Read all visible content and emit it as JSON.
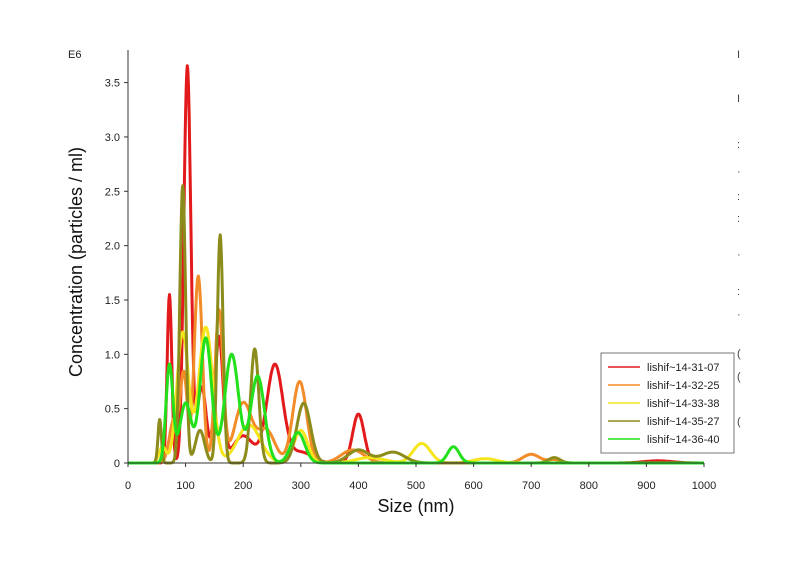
{
  "chart_data": {
    "type": "line",
    "title": "",
    "xlabel": "Size (nm)",
    "ylabel": "Concentration (particles / ml)",
    "y_exponent_label": "E6",
    "xlim": [
      0,
      1000
    ],
    "ylim": [
      0,
      3.8
    ],
    "x_ticks": [
      0,
      100,
      200,
      300,
      400,
      500,
      600,
      700,
      800,
      900,
      1000
    ],
    "x_tick_labels": [
      "0",
      "100",
      "200",
      "300",
      "400",
      "500",
      "600",
      "700",
      "800",
      "900",
      "1000"
    ],
    "y_ticks": [
      0,
      0.5,
      1.0,
      1.5,
      2.0,
      2.5,
      3.0,
      3.5
    ],
    "y_tick_labels": [
      "0",
      "0.5",
      "1.0",
      "1.5",
      "2.0",
      "2.5",
      "3.0",
      "3.5"
    ],
    "legend_position": "right",
    "series": [
      {
        "name": "lishif~14-31-07",
        "color": "#e31a1c",
        "peaks": [
          [
            72,
            1.55,
            4
          ],
          [
            103,
            3.65,
            6
          ],
          [
            128,
            0.7,
            8
          ],
          [
            158,
            1.15,
            7
          ],
          [
            200,
            0.25,
            18
          ],
          [
            255,
            0.9,
            14
          ],
          [
            300,
            0.1,
            20
          ],
          [
            400,
            0.45,
            10
          ],
          [
            920,
            0.02,
            25
          ]
        ]
      },
      {
        "name": "lishif~14-32-25",
        "color": "#f28c28",
        "peaks": [
          [
            80,
            0.4,
            8
          ],
          [
            97,
            0.8,
            6
          ],
          [
            122,
            1.72,
            7
          ],
          [
            158,
            1.4,
            7
          ],
          [
            200,
            0.55,
            15
          ],
          [
            240,
            0.3,
            15
          ],
          [
            298,
            0.75,
            12
          ],
          [
            390,
            0.12,
            20
          ],
          [
            700,
            0.08,
            15
          ],
          [
            740,
            0.03,
            10
          ]
        ]
      },
      {
        "name": "lishif~14-33-38",
        "color": "#f5e51b",
        "peaks": [
          [
            60,
            0.15,
            6
          ],
          [
            95,
            1.2,
            10
          ],
          [
            135,
            1.25,
            12
          ],
          [
            210,
            0.35,
            20
          ],
          [
            300,
            0.3,
            12
          ],
          [
            420,
            0.05,
            25
          ],
          [
            510,
            0.18,
            15
          ],
          [
            620,
            0.04,
            20
          ]
        ]
      },
      {
        "name": "lishif~14-35-27",
        "color": "#8c8c1c",
        "peaks": [
          [
            55,
            0.4,
            3
          ],
          [
            95,
            2.55,
            5
          ],
          [
            125,
            0.3,
            8
          ],
          [
            160,
            2.1,
            5
          ],
          [
            220,
            1.05,
            7
          ],
          [
            305,
            0.55,
            12
          ],
          [
            400,
            0.12,
            18
          ],
          [
            460,
            0.1,
            20
          ],
          [
            740,
            0.05,
            10
          ]
        ]
      },
      {
        "name": "lishif~14-36-40",
        "color": "#22e01b",
        "peaks": [
          [
            72,
            0.9,
            6
          ],
          [
            100,
            0.55,
            10
          ],
          [
            135,
            1.15,
            10
          ],
          [
            180,
            1.0,
            12
          ],
          [
            225,
            0.8,
            12
          ],
          [
            295,
            0.28,
            12
          ],
          [
            565,
            0.15,
            10
          ]
        ]
      }
    ]
  },
  "right_edge_glyphs": [
    "I",
    "I",
    ":",
    "·",
    ":",
    ":",
    "·",
    ":",
    "·",
    "(",
    "(",
    "("
  ]
}
